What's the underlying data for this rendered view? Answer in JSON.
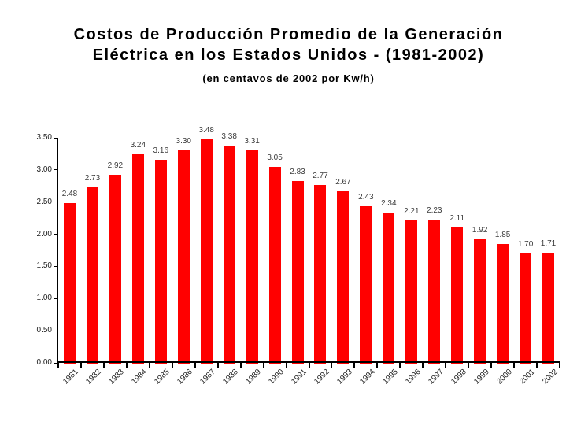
{
  "page": {
    "background": "#ffffff"
  },
  "title": {
    "line1": "Costos de Producción Promedio de la Generación",
    "line2": "Eléctrica en los Estados Unidos - (1981-2002)",
    "subtitle": "(en centavos de 2002 por Kw/h)"
  },
  "chart_data": {
    "type": "bar",
    "title": "Costos de Producción Promedio de la Generación Eléctrica en los Estados Unidos - (1981-2002)",
    "subtitle": "(en centavos de 2002 por Kw/h)",
    "categories": [
      "1981",
      "1982",
      "1983",
      "1984",
      "1985",
      "1986",
      "1987",
      "1988",
      "1989",
      "1990",
      "1991",
      "1992",
      "1993",
      "1994",
      "1995",
      "1996",
      "1997",
      "1998",
      "1999",
      "2000",
      "2001",
      "2002"
    ],
    "values": [
      2.48,
      2.73,
      2.92,
      3.24,
      3.16,
      3.3,
      3.48,
      3.38,
      3.31,
      3.05,
      2.83,
      2.77,
      2.67,
      2.43,
      2.34,
      2.21,
      2.23,
      2.11,
      1.92,
      1.85,
      1.7,
      1.71
    ],
    "value_labels": [
      "2.48",
      "2.73",
      "2.92",
      "3.24",
      "3.16",
      "3.30",
      "3.48",
      "3.38",
      "3.31",
      "3.05",
      "2.83",
      "2.77",
      "2.67",
      "2.43",
      "2.34",
      "2.21",
      "2.23",
      "2.11",
      "1.92",
      "1.85",
      "1.70",
      "1.71"
    ],
    "xlabel": "",
    "ylabel": "",
    "ylim": [
      0,
      3.5
    ],
    "yticks": [
      "0.00",
      "0.50",
      "1.00",
      "1.50",
      "2.00",
      "2.50",
      "3.00",
      "3.50"
    ],
    "ytick_step": 0.5,
    "grid": false,
    "legend": null,
    "bar_color": "#ff0000",
    "axis_color": "#000000",
    "value_label_color": "#3a3a3a",
    "text_color": "#000000"
  }
}
